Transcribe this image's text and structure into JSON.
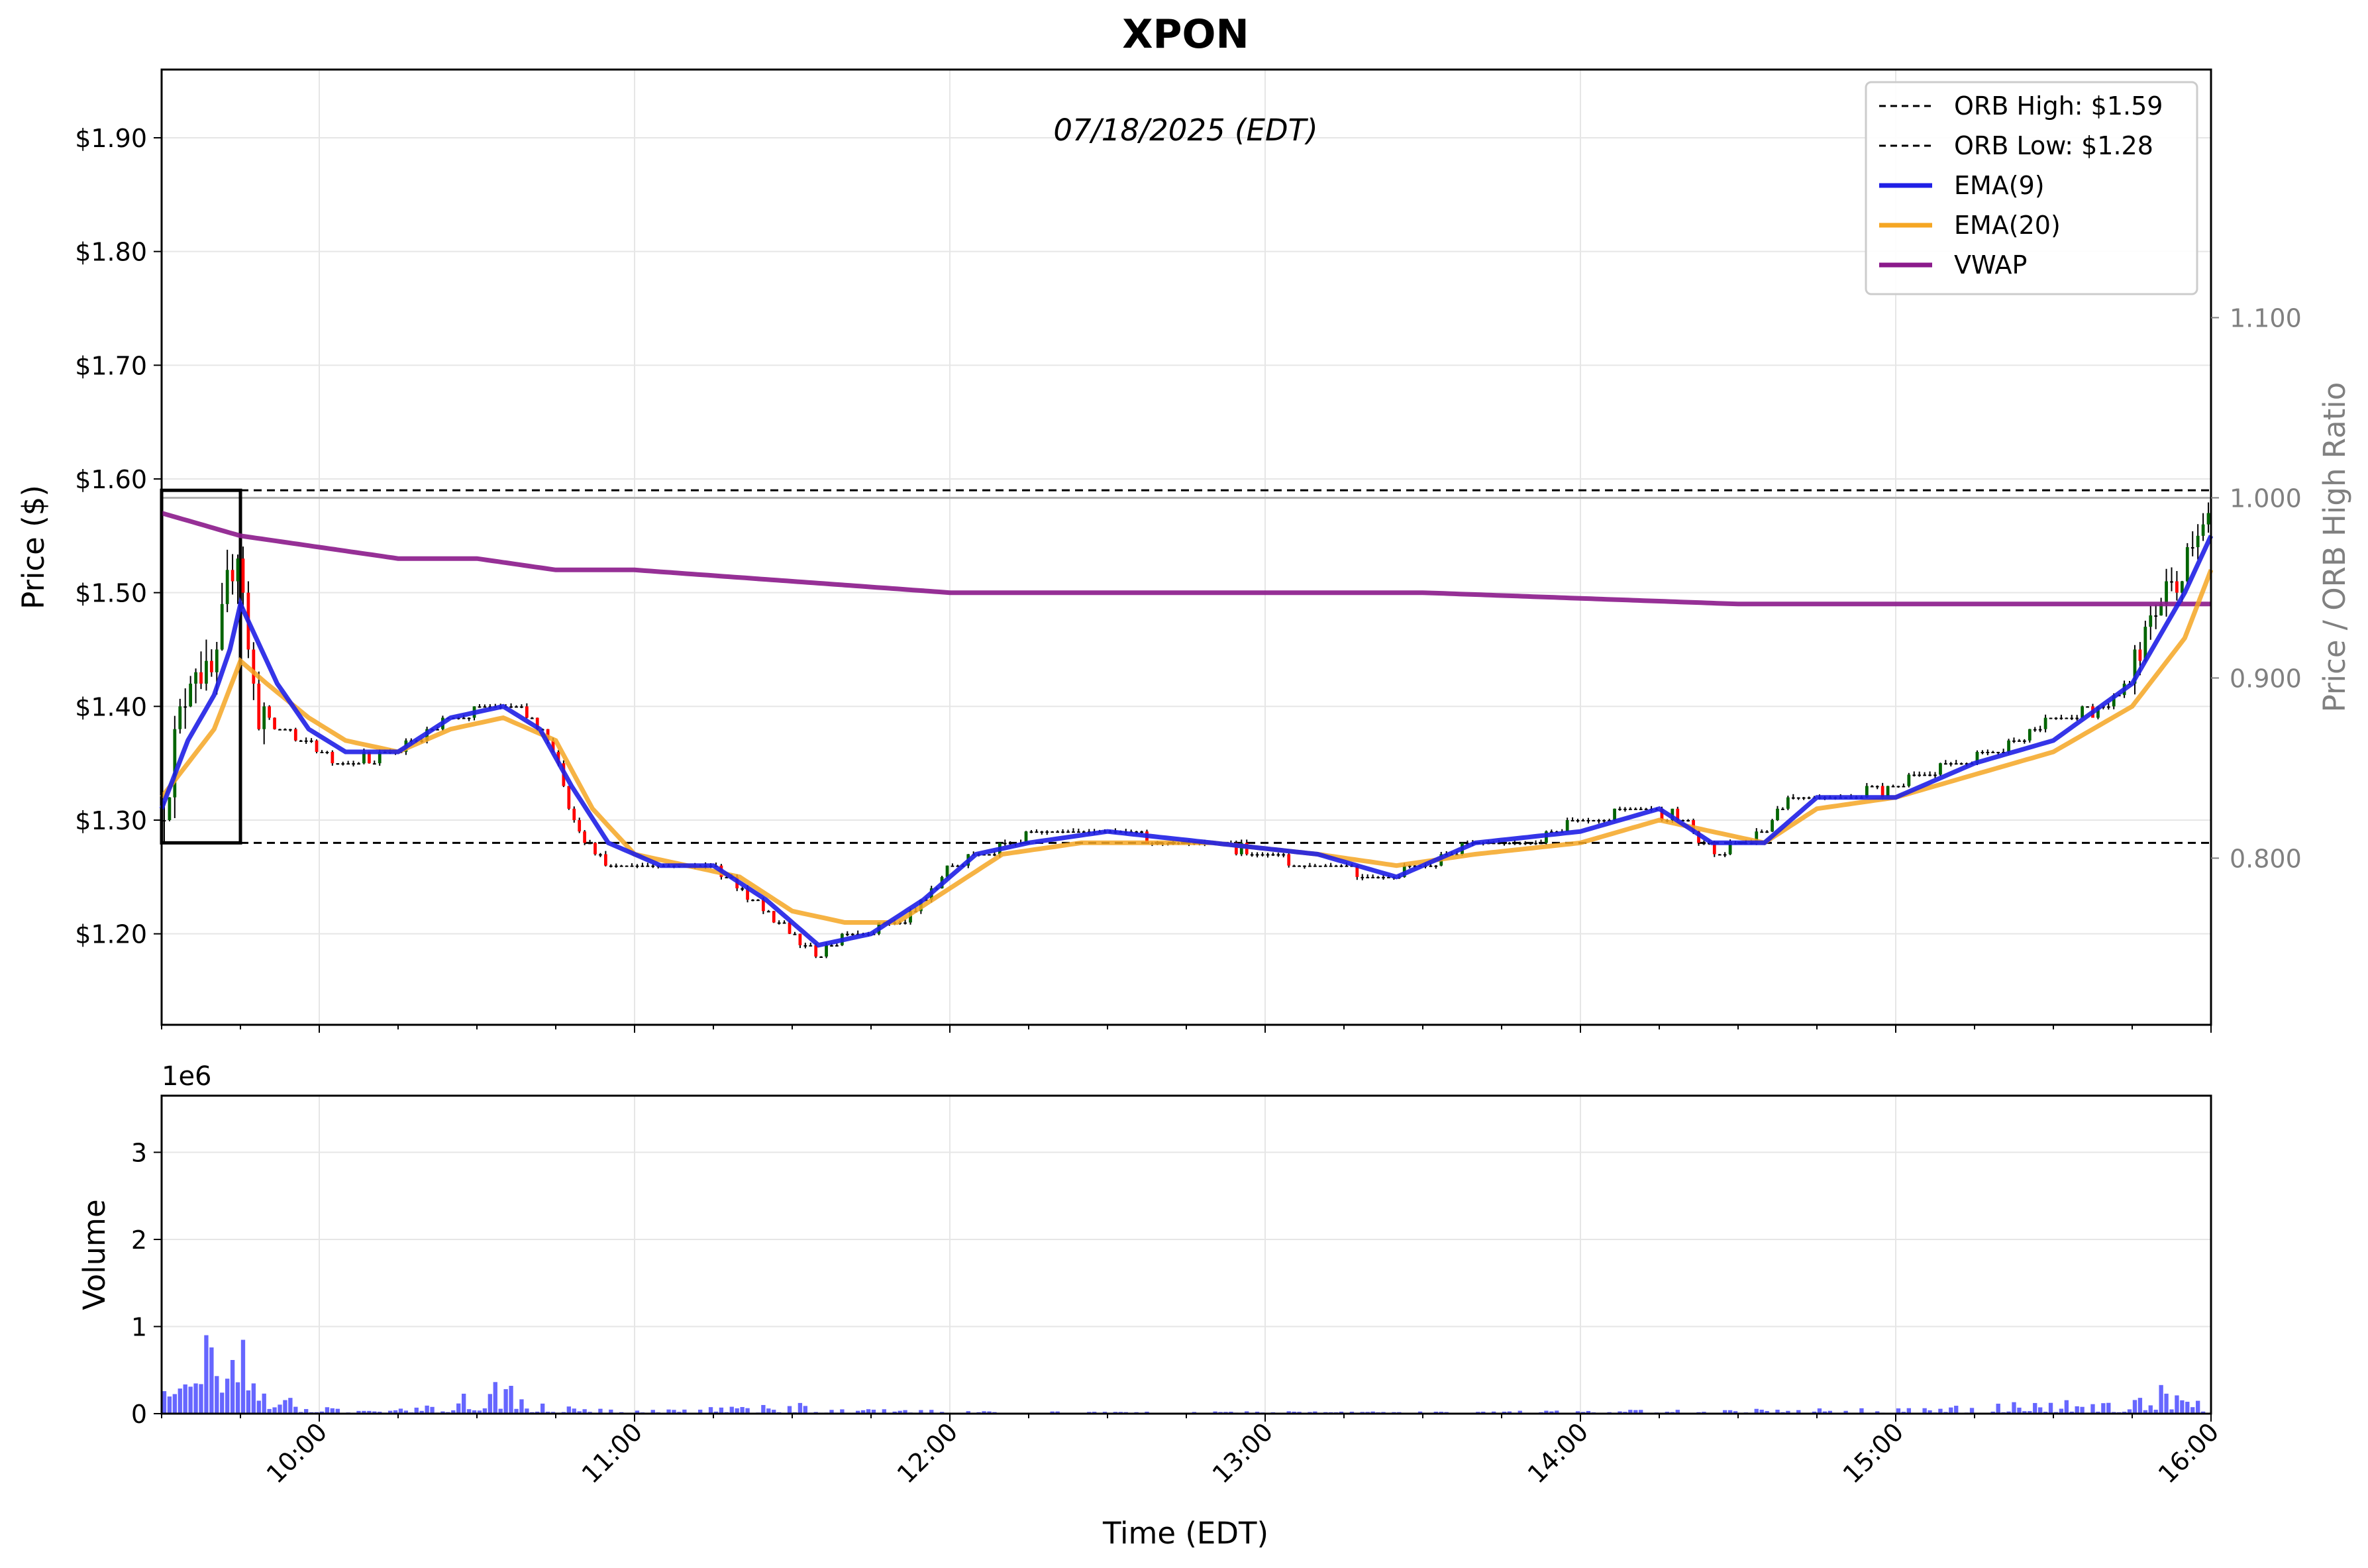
{
  "chart_data": {
    "type": "candlestick",
    "title": "XPON",
    "subtitle": "07/18/2025 (EDT)",
    "xlabel": "Time (EDT)",
    "price_axis": {
      "ylabel": "Price ($)",
      "ylim": [
        1.12,
        1.96
      ],
      "ticks": [
        1.2,
        1.3,
        1.4,
        1.5,
        1.6,
        1.7,
        1.8,
        1.9
      ],
      "tick_labels": [
        "$1.20",
        "$1.30",
        "$1.40",
        "$1.50",
        "$1.60",
        "$1.70",
        "$1.80",
        "$1.90"
      ]
    },
    "ratio_axis": {
      "ylabel": "Price / ORB High Ratio",
      "ylim": [
        0.7075,
        1.2377
      ],
      "ticks": [
        0.8,
        0.9,
        1.0,
        1.1
      ],
      "tick_labels": [
        "0.800",
        "0.900",
        "1.000",
        "1.100"
      ]
    },
    "volume_axis": {
      "ylabel": "Volume",
      "multiplier_label": "1e6",
      "ylim": [
        0,
        3.65
      ],
      "ticks": [
        0,
        1,
        2,
        3
      ],
      "tick_labels": [
        "0",
        "1",
        "2",
        "3"
      ]
    },
    "time_axis": {
      "range": [
        "09:30",
        "16:00"
      ],
      "ticks": [
        "10:00",
        "11:00",
        "12:00",
        "13:00",
        "14:00",
        "15:00",
        "16:00"
      ]
    },
    "grid": true,
    "legend": {
      "placement": "top-right",
      "entries": [
        {
          "label": "ORB High: $1.59",
          "color": "#000000",
          "style": "dashed"
        },
        {
          "label": "ORB Low: $1.28",
          "color": "#000000",
          "style": "dashed"
        },
        {
          "label": "EMA(9)",
          "color": "#1f1fe6",
          "style": "solid"
        },
        {
          "label": "EMA(20)",
          "color": "#f5a623",
          "style": "solid"
        },
        {
          "label": "VWAP",
          "color": "#8b1a8b",
          "style": "solid"
        }
      ]
    },
    "orb": {
      "high": 1.59,
      "low": 1.28,
      "start": "09:30",
      "end": "09:45"
    },
    "colors": {
      "up": "#006400",
      "down": "#ff0000",
      "wick": "#000000",
      "volume": "#0000ff",
      "ratio_ref": "#b0b0b0",
      "ratio_axis": "#808080"
    },
    "price_anchors": [
      [
        "09:30",
        1.3
      ],
      [
        "09:33",
        1.38
      ],
      [
        "09:36",
        1.44
      ],
      [
        "09:40",
        1.42
      ],
      [
        "09:43",
        1.52
      ],
      [
        "09:45",
        1.55
      ],
      [
        "09:46",
        1.46
      ],
      [
        "09:48",
        1.4
      ],
      [
        "09:52",
        1.38
      ],
      [
        "09:58",
        1.37
      ],
      [
        "10:05",
        1.35
      ],
      [
        "10:15",
        1.36
      ],
      [
        "10:25",
        1.39
      ],
      [
        "10:35",
        1.4
      ],
      [
        "10:40",
        1.39
      ],
      [
        "10:45",
        1.36
      ],
      [
        "10:48",
        1.3
      ],
      [
        "10:55",
        1.26
      ],
      [
        "11:00",
        1.26
      ],
      [
        "11:10",
        1.26
      ],
      [
        "11:15",
        1.26
      ],
      [
        "11:20",
        1.24
      ],
      [
        "11:30",
        1.2
      ],
      [
        "11:35",
        1.18
      ],
      [
        "11:40",
        1.2
      ],
      [
        "11:50",
        1.21
      ],
      [
        "11:55",
        1.23
      ],
      [
        "12:00",
        1.26
      ],
      [
        "12:10",
        1.28
      ],
      [
        "12:20",
        1.29
      ],
      [
        "12:30",
        1.29
      ],
      [
        "12:40",
        1.28
      ],
      [
        "12:50",
        1.28
      ],
      [
        "13:00",
        1.27
      ],
      [
        "13:10",
        1.26
      ],
      [
        "13:15",
        1.26
      ],
      [
        "13:20",
        1.25
      ],
      [
        "13:30",
        1.26
      ],
      [
        "13:40",
        1.28
      ],
      [
        "13:50",
        1.28
      ],
      [
        "14:00",
        1.3
      ],
      [
        "14:10",
        1.31
      ],
      [
        "14:20",
        1.3
      ],
      [
        "14:25",
        1.27
      ],
      [
        "14:30",
        1.28
      ],
      [
        "14:35",
        1.29
      ],
      [
        "14:40",
        1.32
      ],
      [
        "14:50",
        1.32
      ],
      [
        "15:00",
        1.33
      ],
      [
        "15:10",
        1.35
      ],
      [
        "15:20",
        1.36
      ],
      [
        "15:30",
        1.39
      ],
      [
        "15:40",
        1.4
      ],
      [
        "15:45",
        1.43
      ],
      [
        "15:50",
        1.49
      ],
      [
        "15:55",
        1.52
      ],
      [
        "16:00",
        1.58
      ]
    ],
    "ema9_anchors": [
      [
        "09:30",
        1.31
      ],
      [
        "09:35",
        1.37
      ],
      [
        "09:40",
        1.41
      ],
      [
        "09:43",
        1.45
      ],
      [
        "09:45",
        1.49
      ],
      [
        "09:48",
        1.46
      ],
      [
        "09:52",
        1.42
      ],
      [
        "09:58",
        1.38
      ],
      [
        "10:05",
        1.36
      ],
      [
        "10:15",
        1.36
      ],
      [
        "10:25",
        1.39
      ],
      [
        "10:35",
        1.4
      ],
      [
        "10:42",
        1.38
      ],
      [
        "10:48",
        1.33
      ],
      [
        "10:55",
        1.28
      ],
      [
        "11:05",
        1.26
      ],
      [
        "11:15",
        1.26
      ],
      [
        "11:25",
        1.23
      ],
      [
        "11:35",
        1.19
      ],
      [
        "11:45",
        1.2
      ],
      [
        "11:55",
        1.23
      ],
      [
        "12:05",
        1.27
      ],
      [
        "12:15",
        1.28
      ],
      [
        "12:30",
        1.29
      ],
      [
        "12:50",
        1.28
      ],
      [
        "13:10",
        1.27
      ],
      [
        "13:25",
        1.25
      ],
      [
        "13:40",
        1.28
      ],
      [
        "14:00",
        1.29
      ],
      [
        "14:15",
        1.31
      ],
      [
        "14:25",
        1.28
      ],
      [
        "14:35",
        1.28
      ],
      [
        "14:45",
        1.32
      ],
      [
        "15:00",
        1.32
      ],
      [
        "15:15",
        1.35
      ],
      [
        "15:30",
        1.37
      ],
      [
        "15:45",
        1.42
      ],
      [
        "15:55",
        1.5
      ],
      [
        "16:00",
        1.55
      ]
    ],
    "ema20_anchors": [
      [
        "09:30",
        1.32
      ],
      [
        "09:35",
        1.35
      ],
      [
        "09:40",
        1.38
      ],
      [
        "09:45",
        1.44
      ],
      [
        "09:50",
        1.42
      ],
      [
        "09:58",
        1.39
      ],
      [
        "10:05",
        1.37
      ],
      [
        "10:15",
        1.36
      ],
      [
        "10:25",
        1.38
      ],
      [
        "10:35",
        1.39
      ],
      [
        "10:45",
        1.37
      ],
      [
        "10:52",
        1.31
      ],
      [
        "11:00",
        1.27
      ],
      [
        "11:10",
        1.26
      ],
      [
        "11:20",
        1.25
      ],
      [
        "11:30",
        1.22
      ],
      [
        "11:40",
        1.21
      ],
      [
        "11:50",
        1.21
      ],
      [
        "12:00",
        1.24
      ],
      [
        "12:10",
        1.27
      ],
      [
        "12:25",
        1.28
      ],
      [
        "12:50",
        1.28
      ],
      [
        "13:10",
        1.27
      ],
      [
        "13:25",
        1.26
      ],
      [
        "13:40",
        1.27
      ],
      [
        "14:00",
        1.28
      ],
      [
        "14:15",
        1.3
      ],
      [
        "14:25",
        1.29
      ],
      [
        "14:35",
        1.28
      ],
      [
        "14:45",
        1.31
      ],
      [
        "15:00",
        1.32
      ],
      [
        "15:15",
        1.34
      ],
      [
        "15:30",
        1.36
      ],
      [
        "15:45",
        1.4
      ],
      [
        "15:55",
        1.46
      ],
      [
        "16:00",
        1.52
      ]
    ],
    "vwap_anchors": [
      [
        "09:30",
        1.57
      ],
      [
        "09:45",
        1.55
      ],
      [
        "10:00",
        1.54
      ],
      [
        "10:15",
        1.53
      ],
      [
        "10:30",
        1.53
      ],
      [
        "10:45",
        1.52
      ],
      [
        "11:00",
        1.52
      ],
      [
        "11:30",
        1.51
      ],
      [
        "12:00",
        1.5
      ],
      [
        "12:30",
        1.5
      ],
      [
        "13:00",
        1.5
      ],
      [
        "13:30",
        1.5
      ],
      [
        "14:00",
        1.495
      ],
      [
        "14:30",
        1.49
      ],
      [
        "15:00",
        1.49
      ],
      [
        "15:30",
        1.49
      ],
      [
        "16:00",
        1.49
      ]
    ],
    "volume_anchors": [
      [
        "09:30",
        0.2
      ],
      [
        "09:32",
        0.32
      ],
      [
        "09:35",
        0.3
      ],
      [
        "09:37",
        0.55
      ],
      [
        "09:38",
        1.05
      ],
      [
        "09:39",
        0.65
      ],
      [
        "09:41",
        0.4
      ],
      [
        "09:43",
        0.7
      ],
      [
        "09:45",
        0.75
      ],
      [
        "09:47",
        0.6
      ],
      [
        "09:50",
        0.15
      ],
      [
        "09:55",
        0.18
      ],
      [
        "10:00",
        0.06
      ],
      [
        "10:20",
        0.06
      ],
      [
        "10:38",
        0.38
      ],
      [
        "10:42",
        0.12
      ],
      [
        "10:50",
        0.05
      ],
      [
        "11:00",
        0.03
      ],
      [
        "11:30",
        0.1
      ],
      [
        "11:40",
        0.05
      ],
      [
        "12:00",
        0.03
      ],
      [
        "12:30",
        0.02
      ],
      [
        "13:00",
        0.02
      ],
      [
        "14:00",
        0.03
      ],
      [
        "15:00",
        0.05
      ],
      [
        "15:30",
        0.12
      ],
      [
        "15:45",
        0.12
      ],
      [
        "15:50",
        0.3
      ],
      [
        "15:55",
        0.15
      ],
      [
        "16:00",
        0.1
      ]
    ]
  }
}
